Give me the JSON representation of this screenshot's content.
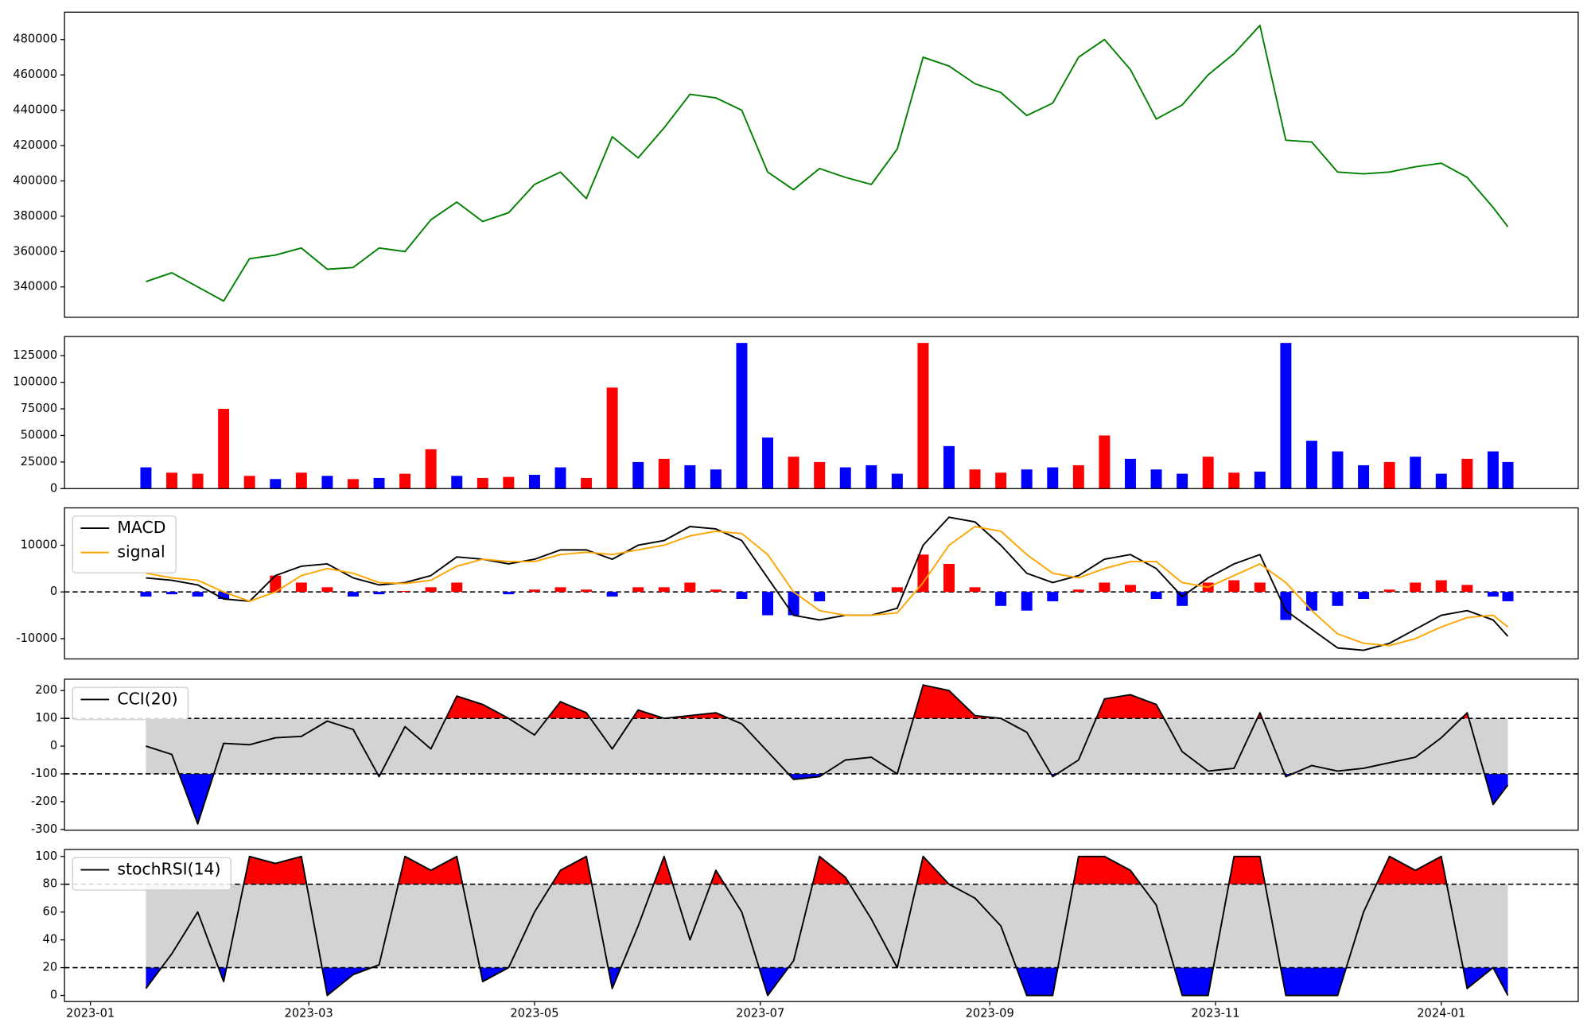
{
  "chart_data": [
    {
      "type": "line",
      "x": [
        "2023-01-16",
        "2023-01-23",
        "2023-01-30",
        "2023-02-06",
        "2023-02-13",
        "2023-02-20",
        "2023-02-27",
        "2023-03-06",
        "2023-03-13",
        "2023-03-20",
        "2023-03-27",
        "2023-04-03",
        "2023-04-10",
        "2023-04-17",
        "2023-04-24",
        "2023-05-01",
        "2023-05-08",
        "2023-05-15",
        "2023-05-22",
        "2023-05-29",
        "2023-06-05",
        "2023-06-12",
        "2023-06-19",
        "2023-06-26",
        "2023-07-03",
        "2023-07-10",
        "2023-07-17",
        "2023-07-24",
        "2023-07-31",
        "2023-08-07",
        "2023-08-14",
        "2023-08-21",
        "2023-08-28",
        "2023-09-04",
        "2023-09-11",
        "2023-09-18",
        "2023-09-25",
        "2023-10-02",
        "2023-10-09",
        "2023-10-16",
        "2023-10-23",
        "2023-10-30",
        "2023-11-06",
        "2023-11-13",
        "2023-11-20",
        "2023-11-27",
        "2023-12-04",
        "2023-12-11",
        "2023-12-18",
        "2023-12-25",
        "2024-01-01",
        "2024-01-08",
        "2024-01-15",
        "2024-01-19"
      ],
      "xlim": [
        "2022-12-25",
        "2024-02-07"
      ],
      "series": [
        {
          "color": "green",
          "values": [
            343000,
            348000,
            340000,
            332000,
            356000,
            358000,
            362000,
            350000,
            351000,
            362000,
            360000,
            378000,
            388000,
            377000,
            382000,
            398000,
            405000,
            390000,
            425000,
            413000,
            430000,
            449000,
            447000,
            440000,
            405000,
            395000,
            407000,
            402000,
            398000,
            418000,
            470000,
            465000,
            455000,
            450000,
            437000,
            444000,
            470000,
            480000,
            463000,
            435000,
            443000,
            460000,
            472000,
            488000,
            423000,
            422000,
            405000,
            404000,
            405000,
            408000,
            410000,
            402000,
            385000,
            374000
          ]
        }
      ],
      "ylim": [
        322800,
        495500
      ],
      "yticks": [
        340000,
        360000,
        380000,
        400000,
        420000,
        440000,
        460000,
        480000
      ]
    },
    {
      "type": "bar",
      "x": [
        "2023-01-16",
        "2023-01-23",
        "2023-01-30",
        "2023-02-06",
        "2023-02-13",
        "2023-02-20",
        "2023-02-27",
        "2023-03-06",
        "2023-03-13",
        "2023-03-20",
        "2023-03-27",
        "2023-04-03",
        "2023-04-10",
        "2023-04-17",
        "2023-04-24",
        "2023-05-01",
        "2023-05-08",
        "2023-05-15",
        "2023-05-22",
        "2023-05-29",
        "2023-06-05",
        "2023-06-12",
        "2023-06-19",
        "2023-06-26",
        "2023-07-03",
        "2023-07-10",
        "2023-07-17",
        "2023-07-24",
        "2023-07-31",
        "2023-08-07",
        "2023-08-14",
        "2023-08-21",
        "2023-08-28",
        "2023-09-04",
        "2023-09-11",
        "2023-09-18",
        "2023-09-25",
        "2023-10-02",
        "2023-10-09",
        "2023-10-16",
        "2023-10-23",
        "2023-10-30",
        "2023-11-06",
        "2023-11-13",
        "2023-11-20",
        "2023-11-27",
        "2023-12-04",
        "2023-12-11",
        "2023-12-18",
        "2023-12-25",
        "2024-01-01",
        "2024-01-08",
        "2024-01-15",
        "2024-01-19"
      ],
      "xlim": [
        "2022-12-25",
        "2024-02-07"
      ],
      "values": [
        20000,
        15000,
        14000,
        75000,
        12000,
        9000,
        15000,
        12000,
        9000,
        10000,
        14000,
        37000,
        12000,
        10000,
        11000,
        13000,
        20000,
        10000,
        95000,
        25000,
        28000,
        22000,
        18000,
        137000,
        48000,
        30000,
        25000,
        20000,
        22000,
        14000,
        137000,
        40000,
        18000,
        15000,
        18000,
        20000,
        22000,
        50000,
        28000,
        18000,
        14000,
        30000,
        15000,
        16000,
        137000,
        45000,
        35000,
        22000,
        25000,
        30000,
        14000,
        28000,
        35000,
        25000
      ],
      "colors": [
        "blue",
        "red",
        "red",
        "red",
        "red",
        "blue",
        "red",
        "blue",
        "red",
        "blue",
        "red",
        "red",
        "blue",
        "red",
        "red",
        "blue",
        "blue",
        "red",
        "red",
        "blue",
        "red",
        "blue",
        "blue",
        "blue",
        "blue",
        "red",
        "red",
        "blue",
        "blue",
        "blue",
        "red",
        "blue",
        "red",
        "red",
        "blue",
        "blue",
        "red",
        "red",
        "blue",
        "blue",
        "blue",
        "red",
        "red",
        "blue",
        "blue",
        "blue",
        "blue",
        "blue",
        "red",
        "blue",
        "blue",
        "red",
        "blue",
        "blue"
      ],
      "ylim": [
        0,
        143000
      ],
      "yticks": [
        0,
        25000,
        50000,
        75000,
        100000,
        125000
      ]
    },
    {
      "type": "line",
      "x": [
        "2023-01-16",
        "2023-01-23",
        "2023-01-30",
        "2023-02-06",
        "2023-02-13",
        "2023-02-20",
        "2023-02-27",
        "2023-03-06",
        "2023-03-13",
        "2023-03-20",
        "2023-03-27",
        "2023-04-03",
        "2023-04-10",
        "2023-04-17",
        "2023-04-24",
        "2023-05-01",
        "2023-05-08",
        "2023-05-15",
        "2023-05-22",
        "2023-05-29",
        "2023-06-05",
        "2023-06-12",
        "2023-06-19",
        "2023-06-26",
        "2023-07-03",
        "2023-07-10",
        "2023-07-17",
        "2023-07-24",
        "2023-07-31",
        "2023-08-07",
        "2023-08-14",
        "2023-08-21",
        "2023-08-28",
        "2023-09-04",
        "2023-09-11",
        "2023-09-18",
        "2023-09-25",
        "2023-10-02",
        "2023-10-09",
        "2023-10-16",
        "2023-10-23",
        "2023-10-30",
        "2023-11-06",
        "2023-11-13",
        "2023-11-20",
        "2023-11-27",
        "2023-12-04",
        "2023-12-11",
        "2023-12-18",
        "2023-12-25",
        "2024-01-01",
        "2024-01-08",
        "2024-01-15",
        "2024-01-19"
      ],
      "xlim": [
        "2022-12-25",
        "2024-02-07"
      ],
      "series": [
        {
          "name": "MACD",
          "color": "black",
          "values": [
            3000,
            2500,
            1500,
            -1500,
            -2000,
            3500,
            5500,
            6000,
            3000,
            1500,
            2000,
            3500,
            7500,
            7000,
            6000,
            7000,
            9000,
            9000,
            7000,
            10000,
            11000,
            14000,
            13500,
            11000,
            3000,
            -5000,
            -6000,
            -5000,
            -5000,
            -3500,
            10000,
            16000,
            15000,
            10000,
            4000,
            2000,
            3500,
            7000,
            8000,
            5000,
            -1000,
            3000,
            6000,
            8000,
            -4000,
            -8000,
            -12000,
            -12500,
            -11000,
            -8000,
            -5000,
            -4000,
            -6000,
            -9500
          ]
        },
        {
          "name": "signal",
          "color": "orange",
          "values": [
            4000,
            3000,
            2500,
            0,
            -2000,
            0,
            3500,
            5000,
            4000,
            2000,
            1800,
            2500,
            5500,
            7000,
            6500,
            6500,
            8000,
            8500,
            8000,
            9000,
            10000,
            12000,
            13000,
            12500,
            8000,
            0,
            -4000,
            -5000,
            -5000,
            -4500,
            2000,
            10000,
            14000,
            13000,
            8000,
            4000,
            3000,
            5000,
            6500,
            6500,
            2000,
            1000,
            3500,
            6000,
            2000,
            -4000,
            -9000,
            -11000,
            -11500,
            -10000,
            -7500,
            -5500,
            -5000,
            -7500
          ]
        }
      ],
      "histogram": {
        "positive_color": "red",
        "negative_color": "blue",
        "values": [
          -1000,
          -500,
          -1000,
          -1500,
          0,
          3500,
          2000,
          1000,
          -1000,
          -500,
          200,
          1000,
          2000,
          0,
          -500,
          500,
          1000,
          500,
          -1000,
          1000,
          1000,
          2000,
          500,
          -1500,
          -5000,
          -5000,
          -2000,
          0,
          0,
          1000,
          8000,
          6000,
          1000,
          -3000,
          -4000,
          -2000,
          500,
          2000,
          1500,
          -1500,
          -3000,
          2000,
          2500,
          2000,
          -6000,
          -4000,
          -3000,
          -1500,
          500,
          2000,
          2500,
          1500,
          -1000,
          -2000
        ]
      },
      "hlines": [
        0
      ],
      "legend": "upper left",
      "ylim": [
        -14350,
        18000
      ],
      "yticks": [
        -10000,
        0,
        10000
      ]
    },
    {
      "type": "line",
      "x": [
        "2023-01-16",
        "2023-01-23",
        "2023-01-30",
        "2023-02-06",
        "2023-02-13",
        "2023-02-20",
        "2023-02-27",
        "2023-03-06",
        "2023-03-13",
        "2023-03-20",
        "2023-03-27",
        "2023-04-03",
        "2023-04-10",
        "2023-04-17",
        "2023-04-24",
        "2023-05-01",
        "2023-05-08",
        "2023-05-15",
        "2023-05-22",
        "2023-05-29",
        "2023-06-05",
        "2023-06-12",
        "2023-06-19",
        "2023-06-26",
        "2023-07-03",
        "2023-07-10",
        "2023-07-17",
        "2023-07-24",
        "2023-07-31",
        "2023-08-07",
        "2023-08-14",
        "2023-08-21",
        "2023-08-28",
        "2023-09-04",
        "2023-09-11",
        "2023-09-18",
        "2023-09-25",
        "2023-10-02",
        "2023-10-09",
        "2023-10-16",
        "2023-10-23",
        "2023-10-30",
        "2023-11-06",
        "2023-11-13",
        "2023-11-20",
        "2023-11-27",
        "2023-12-04",
        "2023-12-11",
        "2023-12-18",
        "2023-12-25",
        "2024-01-01",
        "2024-01-08",
        "2024-01-15",
        "2024-01-19"
      ],
      "xlim": [
        "2022-12-25",
        "2024-02-07"
      ],
      "series": [
        {
          "name": "CCI(20)",
          "color": "black",
          "values": [
            0,
            -30,
            -280,
            10,
            5,
            30,
            35,
            90,
            60,
            -110,
            70,
            -10,
            180,
            150,
            100,
            40,
            160,
            120,
            -10,
            130,
            100,
            110,
            120,
            80,
            -20,
            -120,
            -110,
            -50,
            -40,
            -100,
            220,
            200,
            110,
            100,
            50,
            -110,
            -50,
            170,
            185,
            150,
            -20,
            -90,
            -80,
            120,
            -110,
            -70,
            -90,
            -80,
            -60,
            -40,
            30,
            120,
            -210,
            -140
          ]
        }
      ],
      "thresholds": [
        -100,
        100
      ],
      "band_color": "lightgray",
      "upper_fill": "red",
      "lower_fill": "blue",
      "legend": "upper left",
      "ylim": [
        -303,
        241
      ],
      "yticks": [
        -300,
        -200,
        -100,
        0,
        100,
        200
      ]
    },
    {
      "type": "line",
      "x": [
        "2023-01-16",
        "2023-01-23",
        "2023-01-30",
        "2023-02-06",
        "2023-02-13",
        "2023-02-20",
        "2023-02-27",
        "2023-03-06",
        "2023-03-13",
        "2023-03-20",
        "2023-03-27",
        "2023-04-03",
        "2023-04-10",
        "2023-04-17",
        "2023-04-24",
        "2023-05-01",
        "2023-05-08",
        "2023-05-15",
        "2023-05-22",
        "2023-05-29",
        "2023-06-05",
        "2023-06-12",
        "2023-06-19",
        "2023-06-26",
        "2023-07-03",
        "2023-07-10",
        "2023-07-17",
        "2023-07-24",
        "2023-07-31",
        "2023-08-07",
        "2023-08-14",
        "2023-08-21",
        "2023-08-28",
        "2023-09-04",
        "2023-09-11",
        "2023-09-18",
        "2023-09-25",
        "2023-10-02",
        "2023-10-09",
        "2023-10-16",
        "2023-10-23",
        "2023-10-30",
        "2023-11-06",
        "2023-11-13",
        "2023-11-20",
        "2023-11-27",
        "2023-12-04",
        "2023-12-11",
        "2023-12-18",
        "2023-12-25",
        "2024-01-01",
        "2024-01-08",
        "2024-01-15",
        "2024-01-19"
      ],
      "xlim": [
        "2022-12-25",
        "2024-02-07"
      ],
      "xticks": [
        "2023-01",
        "2023-03",
        "2023-05",
        "2023-07",
        "2023-09",
        "2023-11",
        "2024-01"
      ],
      "series": [
        {
          "name": "stochRSI(14)",
          "color": "black",
          "values": [
            5,
            30,
            60,
            10,
            100,
            95,
            100,
            0,
            15,
            22,
            100,
            90,
            100,
            10,
            20,
            60,
            90,
            100,
            5,
            50,
            100,
            40,
            90,
            60,
            0,
            25,
            100,
            85,
            55,
            20,
            100,
            80,
            70,
            50,
            0,
            0,
            100,
            100,
            90,
            65,
            0,
            0,
            100,
            100,
            0,
            0,
            0,
            60,
            100,
            90,
            100,
            5,
            20,
            0
          ]
        }
      ],
      "thresholds": [
        20,
        80
      ],
      "band_color": "lightgray",
      "upper_fill": "red",
      "lower_fill": "blue",
      "legend": "upper left",
      "ylim": [
        -4.4,
        105
      ],
      "yticks": [
        0,
        20,
        40,
        60,
        80,
        100
      ]
    }
  ]
}
